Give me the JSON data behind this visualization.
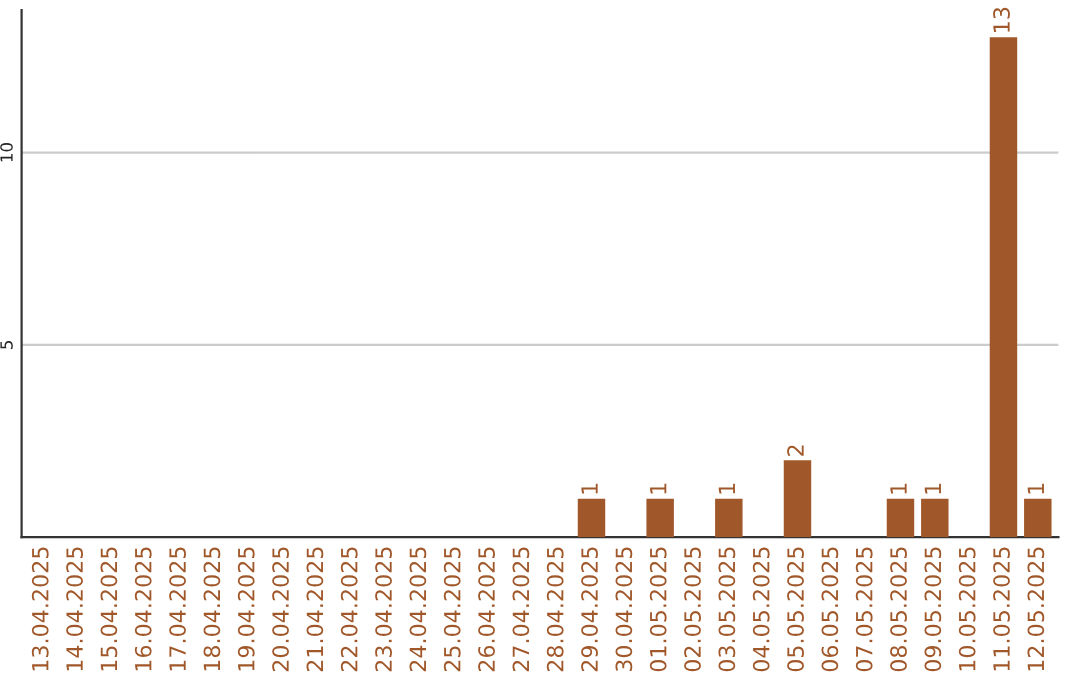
{
  "chart_data": {
    "type": "bar",
    "categories": [
      "13.04.2025",
      "14.04.2025",
      "15.04.2025",
      "16.04.2025",
      "17.04.2025",
      "18.04.2025",
      "19.04.2025",
      "20.04.2025",
      "21.04.2025",
      "22.04.2025",
      "23.04.2025",
      "24.04.2025",
      "25.04.2025",
      "26.04.2025",
      "27.04.2025",
      "28.04.2025",
      "29.04.2025",
      "30.04.2025",
      "01.05.2025",
      "02.05.2025",
      "03.05.2025",
      "04.05.2025",
      "05.05.2025",
      "06.05.2025",
      "07.05.2025",
      "08.05.2025",
      "09.05.2025",
      "10.05.2025",
      "11.05.2025",
      "12.05.2025"
    ],
    "values": [
      0,
      0,
      0,
      0,
      0,
      0,
      0,
      0,
      0,
      0,
      0,
      0,
      0,
      0,
      0,
      0,
      1,
      0,
      1,
      0,
      1,
      0,
      2,
      0,
      0,
      1,
      1,
      0,
      13,
      1
    ],
    "value_labels": [
      null,
      null,
      null,
      null,
      null,
      null,
      null,
      null,
      null,
      null,
      null,
      null,
      null,
      null,
      null,
      null,
      "1",
      null,
      "1",
      null,
      "1",
      null,
      "2",
      null,
      null,
      "1",
      "1",
      null,
      "13",
      "1"
    ],
    "color": "#a0582a",
    "ylim": [
      0,
      13.7
    ],
    "yticks": [
      5,
      10
    ],
    "grid": "y"
  }
}
